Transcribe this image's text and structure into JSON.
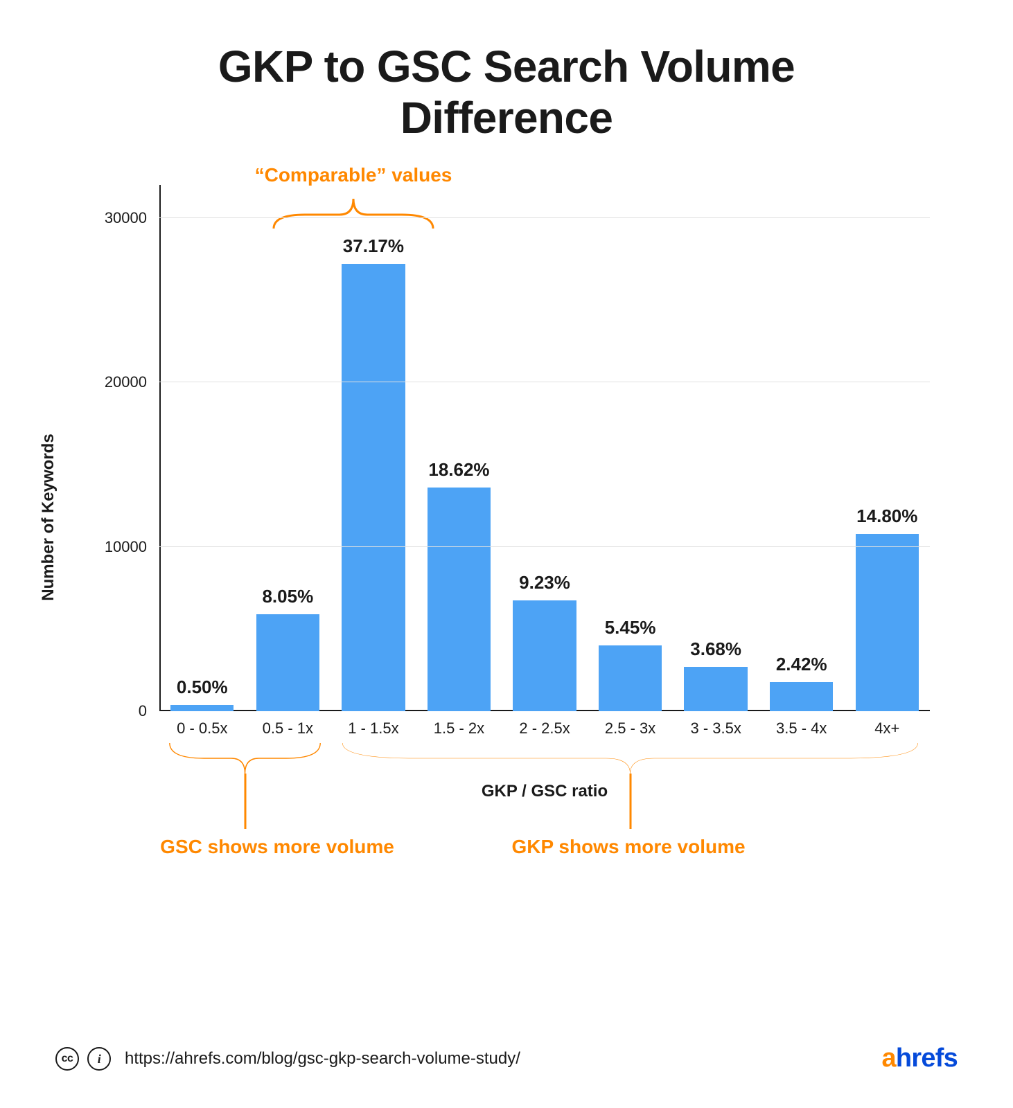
{
  "title_line1": "GKP to GSC Search Volume",
  "title_line2": "Difference",
  "title_fontsize": 64,
  "chart": {
    "type": "bar",
    "categories": [
      "0 - 0.5x",
      "0.5 - 1x",
      "1 - 1.5x",
      "1.5 - 2x",
      "2 - 2.5x",
      "2.5 - 3x",
      "3 - 3.5x",
      "3.5 - 4x",
      "4x+"
    ],
    "values": [
      370,
      5900,
      27200,
      13600,
      6750,
      4000,
      2700,
      1770,
      10800
    ],
    "value_labels": [
      "0.50%",
      "8.05%",
      "37.17%",
      "18.62%",
      "9.23%",
      "5.45%",
      "3.68%",
      "2.42%",
      "14.80%"
    ],
    "bar_color": "#4da3f5",
    "background_color": "#ffffff",
    "grid_color": "#e0e0e0",
    "axis_color": "#1a1a1a",
    "ylabel": "Number of Keywords",
    "xlabel": "GKP / GSC ratio",
    "ymax": 32000,
    "yticks": [
      0,
      10000,
      20000,
      30000
    ],
    "tick_fontsize": 22,
    "label_fontsize": 24,
    "value_label_fontsize": 26,
    "bar_width_ratio": 0.74
  },
  "annotations": {
    "color": "#ff8800",
    "stroke_width": 3,
    "top": {
      "text": "“Comparable” values",
      "fontsize": 28
    },
    "bottom_left": {
      "text": "GSC shows more volume",
      "fontsize": 28
    },
    "bottom_right": {
      "text": "GKP shows more volume",
      "fontsize": 28
    }
  },
  "footer": {
    "cc_label": "cc",
    "by_label": "i",
    "url": "https://ahrefs.com/blog/gsc-gkp-search-volume-study/",
    "url_fontsize": 24,
    "brand_a": "a",
    "brand_rest": "hrefs",
    "brand_fontsize": 38,
    "brand_color_a": "#ff8800",
    "brand_color_rest": "#054ada"
  }
}
